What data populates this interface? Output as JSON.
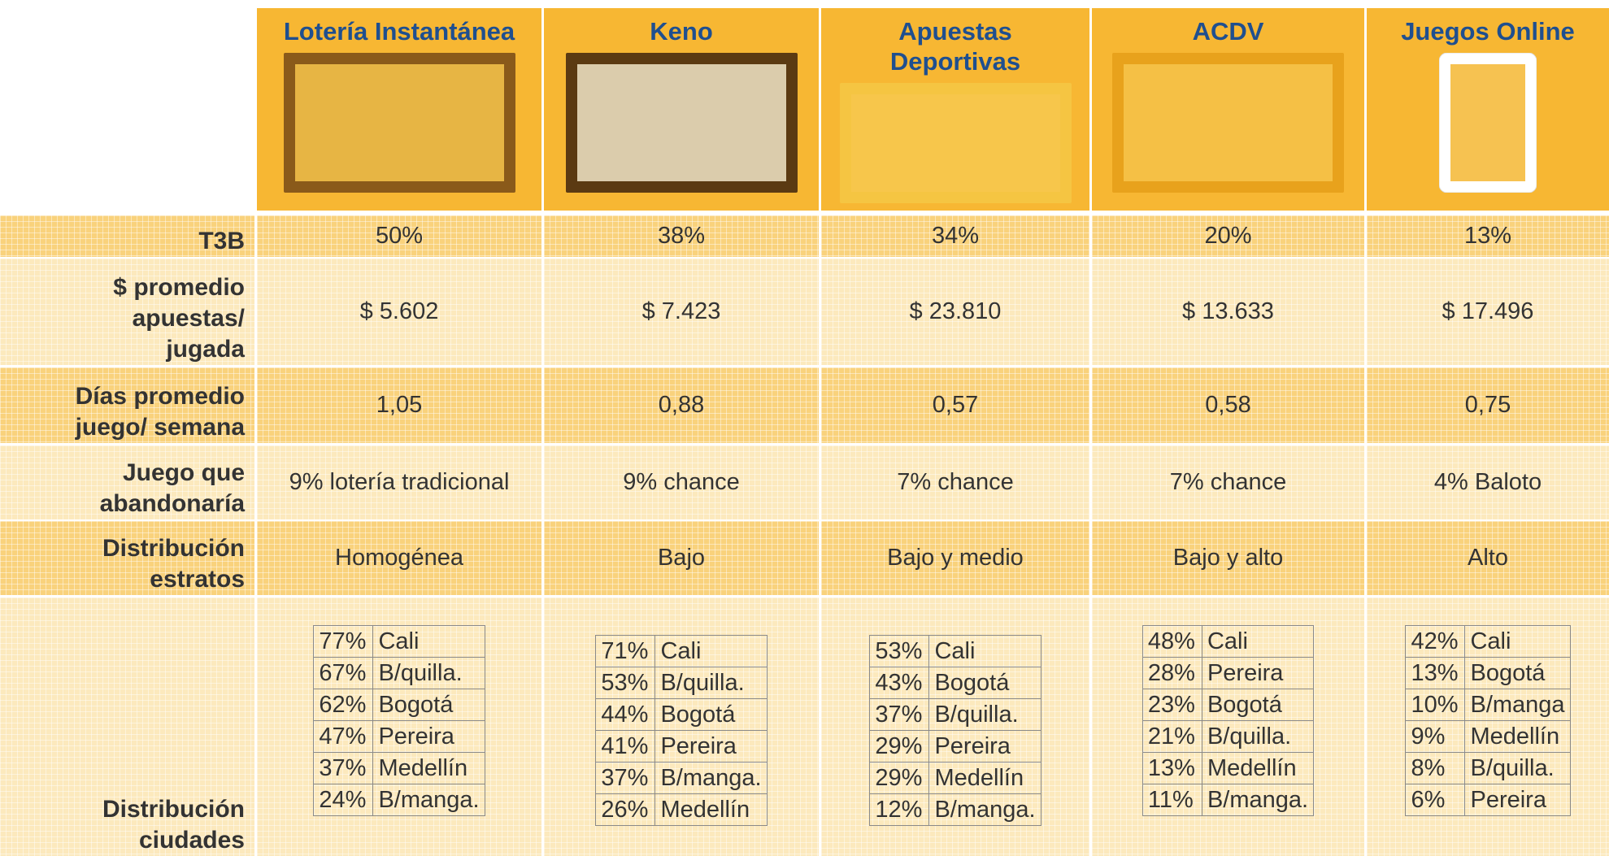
{
  "columns": [
    "Lotería Instantánea",
    "Keno",
    "Apuestas Deportivas",
    "ACDV",
    "Juegos Online"
  ],
  "rows": [
    {
      "label": [
        "T3B"
      ],
      "values": [
        "50%",
        "38%",
        "34%",
        "20%",
        "13%"
      ]
    },
    {
      "label": [
        "$ promedio",
        "apuestas/",
        "jugada"
      ],
      "values": [
        "$ 5.602",
        "$ 7.423",
        "$ 23.810",
        "$ 13.633",
        "$ 17.496"
      ]
    },
    {
      "label": [
        "Días promedio",
        "juego/ semana"
      ],
      "values": [
        "1,05",
        "0,88",
        "0,57",
        "0,58",
        "0,75"
      ]
    },
    {
      "label": [
        "Juego que",
        "abandonaría"
      ],
      "values": [
        "9% lotería tradicional",
        "9% chance",
        "7% chance",
        "7% chance",
        "4% Baloto"
      ]
    },
    {
      "label": [
        "Distribución",
        "estratos"
      ],
      "values": [
        "Homogénea",
        "Bajo",
        "Bajo y medio",
        "Bajo y alto",
        "Alto"
      ]
    }
  ],
  "cities": {
    "label": [
      "Distribución",
      "ciudades"
    ],
    "tables": [
      [
        [
          "77%",
          "Cali"
        ],
        [
          "67%",
          "B/quilla."
        ],
        [
          "62%",
          "Bogotá"
        ],
        [
          "47%",
          "Pereira"
        ],
        [
          "37%",
          "Medellín"
        ],
        [
          "24%",
          "B/manga."
        ]
      ],
      [
        [
          "71%",
          "Cali"
        ],
        [
          "53%",
          "B/quilla."
        ],
        [
          "44%",
          "Bogotá"
        ],
        [
          "41%",
          "Pereira"
        ],
        [
          "37%",
          "B/manga."
        ],
        [
          "26%",
          "Medellín"
        ]
      ],
      [
        [
          "53%",
          "Cali"
        ],
        [
          "43%",
          "Bogotá"
        ],
        [
          "37%",
          "B/quilla."
        ],
        [
          "29%",
          "Pereira"
        ],
        [
          "29%",
          "Medellín"
        ],
        [
          "12%",
          "B/manga."
        ]
      ],
      [
        [
          "48%",
          "Cali"
        ],
        [
          "28%",
          "Pereira"
        ],
        [
          "23%",
          "Bogotá"
        ],
        [
          "21%",
          "B/quilla."
        ],
        [
          "13%",
          "Medellín"
        ],
        [
          "11%",
          "B/manga."
        ]
      ],
      [
        [
          "42%",
          "Cali"
        ],
        [
          "13%",
          "Bogotá"
        ],
        [
          "10%",
          "B/manga"
        ],
        [
          "9%",
          "Medellín"
        ],
        [
          "8%",
          "B/quilla."
        ],
        [
          "6%",
          "Pereira"
        ]
      ]
    ]
  }
}
